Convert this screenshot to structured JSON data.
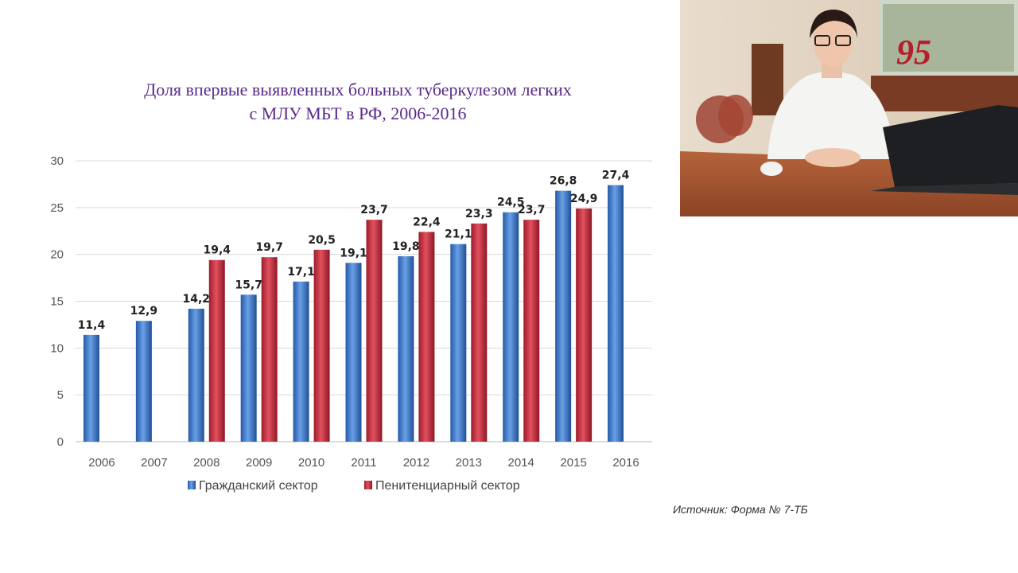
{
  "slide": {
    "title_line1": "Доля впервые выявленных больных туберкулезом легких",
    "title_line2": "с МЛУ МБТ в РФ, 2006-2016",
    "source": "Источник: Форма № 7-ТБ"
  },
  "video": {
    "icon": "presenter-video-feed",
    "banner_text": "95"
  },
  "chart_data": {
    "type": "bar",
    "title": "Доля впервые выявленных больных туберкулезом легких с МЛУ МБТ в РФ, 2006-2016",
    "categories": [
      "2006",
      "2007",
      "2008",
      "2009",
      "2010",
      "2011",
      "2012",
      "2013",
      "2014",
      "2015",
      "2016"
    ],
    "series": [
      {
        "name": "Гражданский сектор",
        "color": "#3a6fbf",
        "values": [
          11.4,
          12.9,
          14.2,
          15.7,
          17.1,
          19.1,
          19.8,
          21.1,
          24.5,
          26.8,
          27.4
        ],
        "labels": [
          "11,4",
          "12,9",
          "14,2",
          "15,7",
          "17,1",
          "19,1",
          "19,8",
          "21,1",
          "24,5",
          "26,8",
          "27,4"
        ]
      },
      {
        "name": "Пенитенциарный сектор",
        "color": "#c0283a",
        "values": [
          null,
          null,
          19.4,
          19.7,
          20.5,
          23.7,
          22.4,
          23.3,
          23.7,
          24.9,
          null
        ],
        "labels": [
          "",
          "",
          "19,4",
          "19,7",
          "20,5",
          "23,7",
          "22,4",
          "23,3",
          "23,7",
          "24,9",
          ""
        ]
      }
    ],
    "yticks": [
      "0",
      "5",
      "10",
      "15",
      "20",
      "25",
      "30"
    ],
    "ylim": [
      0,
      30
    ],
    "grid": true,
    "legend": "bottom"
  }
}
